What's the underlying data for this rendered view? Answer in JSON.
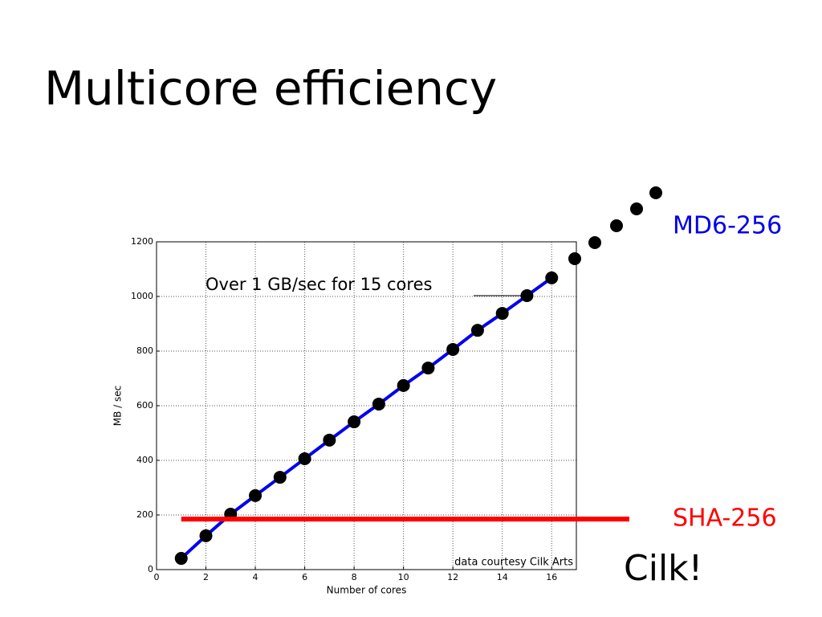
{
  "title": "Multicore efficiency",
  "chart_data": {
    "type": "line",
    "x": [
      1,
      2,
      3,
      4,
      5,
      6,
      7,
      8,
      9,
      10,
      11,
      12,
      13,
      14,
      15,
      16
    ],
    "series": [
      {
        "name": "MD6-256",
        "color": "#0000ee",
        "values": [
          41,
          124,
          203,
          271,
          338,
          406,
          474,
          541,
          606,
          674,
          738,
          806,
          876,
          938,
          1003,
          1068
        ]
      }
    ],
    "reference_lines": [
      {
        "name": "SHA-256",
        "value": 185,
        "color": "#ff0000"
      }
    ],
    "xlim": [
      0,
      17
    ],
    "ylim": [
      0,
      1200
    ],
    "xticks": [
      0,
      2,
      4,
      6,
      8,
      10,
      12,
      14,
      16
    ],
    "yticks": [
      0,
      200,
      400,
      600,
      800,
      1000,
      1200
    ],
    "grid": true,
    "xlabel": "Number of cores",
    "ylabel": "MB / sec",
    "annotations": [
      "Over 1 GB/sec for 15 cores",
      "data courtesy Cilk Arts",
      "Cilk!"
    ]
  }
}
